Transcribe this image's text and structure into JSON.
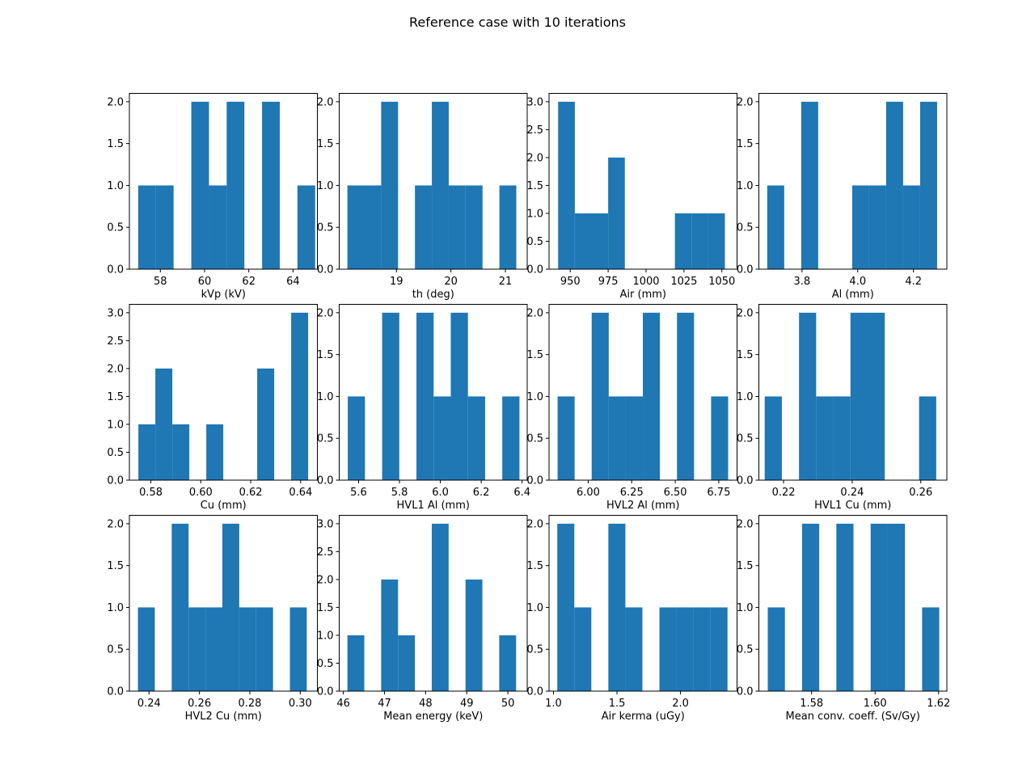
{
  "figure": {
    "suptitle": "Reference case with 10 iterations"
  },
  "colors": {
    "bar": "#1f77b4",
    "axes": "#000000",
    "background": "#ffffff"
  },
  "chart_data": [
    {
      "type": "bar",
      "xlabel": "kVp (kV)",
      "xlim": [
        56.6,
        65.1
      ],
      "ylim": [
        0,
        2.1
      ],
      "xticks": [
        58,
        60,
        62,
        64
      ],
      "xtick_labels": [
        "58",
        "60",
        "62",
        "64"
      ],
      "yticks": [
        0,
        0.5,
        1,
        1.5,
        2
      ],
      "ytick_labels": [
        "0.0",
        "0.5",
        "1.0",
        "1.5",
        "2.0"
      ],
      "bin_edges": [
        57.0,
        57.8,
        58.6,
        59.4,
        60.2,
        61.0,
        61.8,
        62.6,
        63.4,
        64.2,
        65.0
      ],
      "counts": [
        1,
        1,
        0,
        2,
        1,
        2,
        0,
        2,
        0,
        1
      ]
    },
    {
      "type": "bar",
      "xlabel": "th (deg)",
      "xlim": [
        17.95,
        21.4
      ],
      "ylim": [
        0,
        2.1
      ],
      "xticks": [
        19,
        20,
        21
      ],
      "xtick_labels": [
        "19",
        "20",
        "21"
      ],
      "yticks": [
        0,
        0.5,
        1,
        1.5,
        2
      ],
      "ytick_labels": [
        "0.0",
        "0.5",
        "1.0",
        "1.5",
        "2.0"
      ],
      "bin_edges": [
        18.1,
        18.41,
        18.72,
        19.03,
        19.34,
        19.65,
        19.96,
        20.27,
        20.58,
        20.89,
        21.2
      ],
      "counts": [
        1,
        1,
        2,
        0,
        1,
        2,
        1,
        1,
        0,
        1
      ]
    },
    {
      "type": "bar",
      "xlabel": "Air (mm)",
      "xlim": [
        936,
        1060
      ],
      "ylim": [
        0,
        3.15
      ],
      "xticks": [
        950,
        975,
        1000,
        1025,
        1050
      ],
      "xtick_labels": [
        "950",
        "975",
        "1000",
        "1025",
        "1050"
      ],
      "yticks": [
        0,
        0.5,
        1,
        1.5,
        2,
        2.5,
        3
      ],
      "ytick_labels": [
        "0.0",
        "0.5",
        "1.0",
        "1.5",
        "2.0",
        "2.5",
        "3.0"
      ],
      "bin_edges": [
        942,
        953,
        964,
        975,
        986,
        997,
        1008,
        1019,
        1030,
        1041,
        1052
      ],
      "counts": [
        3,
        1,
        1,
        2,
        0,
        0,
        0,
        1,
        1,
        1
      ]
    },
    {
      "type": "bar",
      "xlabel": "Al (mm)",
      "xlim": [
        3.645,
        4.32
      ],
      "ylim": [
        0,
        2.1
      ],
      "xticks": [
        3.8,
        4.0,
        4.2
      ],
      "xtick_labels": [
        "3.8",
        "4.0",
        "4.2"
      ],
      "yticks": [
        0,
        0.5,
        1,
        1.5,
        2
      ],
      "ytick_labels": [
        "0.0",
        "0.5",
        "1.0",
        "1.5",
        "2.0"
      ],
      "bin_edges": [
        3.675,
        3.736,
        3.797,
        3.858,
        3.919,
        3.98,
        4.041,
        4.102,
        4.163,
        4.224,
        4.285
      ],
      "counts": [
        1,
        0,
        2,
        0,
        0,
        1,
        1,
        2,
        1,
        2
      ]
    },
    {
      "type": "bar",
      "xlabel": "Cu (mm)",
      "xlim": [
        0.5714,
        0.6467
      ],
      "ylim": [
        0,
        3.15
      ],
      "xticks": [
        0.58,
        0.6,
        0.62,
        0.64
      ],
      "xtick_labels": [
        "0.58",
        "0.60",
        "0.62",
        "0.64"
      ],
      "yticks": [
        0,
        0.5,
        1,
        1.5,
        2,
        2.5,
        3
      ],
      "ytick_labels": [
        "0.0",
        "0.5",
        "1.0",
        "1.5",
        "2.0",
        "2.5",
        "3.0"
      ],
      "bin_edges": [
        0.575,
        0.5818,
        0.5886,
        0.5954,
        0.6022,
        0.609,
        0.6158,
        0.6226,
        0.6294,
        0.6362,
        0.643
      ],
      "counts": [
        1,
        2,
        1,
        0,
        1,
        0,
        0,
        2,
        0,
        3
      ]
    },
    {
      "type": "bar",
      "xlabel": "HVL1 Al (mm)",
      "xlim": [
        5.505,
        6.425
      ],
      "ylim": [
        0,
        2.1
      ],
      "xticks": [
        5.6,
        5.8,
        6.0,
        6.2,
        6.4
      ],
      "xtick_labels": [
        "5.6",
        "5.8",
        "6.0",
        "6.2",
        "6.4"
      ],
      "yticks": [
        0,
        0.5,
        1,
        1.5,
        2
      ],
      "ytick_labels": [
        "0.0",
        "0.5",
        "1.0",
        "1.5",
        "2.0"
      ],
      "bin_edges": [
        5.547,
        5.631,
        5.715,
        5.799,
        5.883,
        5.967,
        6.051,
        6.135,
        6.219,
        6.303,
        6.387
      ],
      "counts": [
        1,
        0,
        2,
        0,
        2,
        1,
        2,
        1,
        0,
        1
      ]
    },
    {
      "type": "bar",
      "xlabel": "HVL2 Al (mm)",
      "xlim": [
        5.775,
        6.855
      ],
      "ylim": [
        0,
        2.1
      ],
      "xticks": [
        6.0,
        6.25,
        6.5,
        6.75
      ],
      "xtick_labels": [
        "6.00",
        "6.25",
        "6.50",
        "6.75"
      ],
      "yticks": [
        0,
        0.5,
        1,
        1.5,
        2
      ],
      "ytick_labels": [
        "0.0",
        "0.5",
        "1.0",
        "1.5",
        "2.0"
      ],
      "bin_edges": [
        5.824,
        5.922,
        6.02,
        6.118,
        6.216,
        6.314,
        6.412,
        6.51,
        6.608,
        6.706,
        6.804
      ],
      "counts": [
        1,
        0,
        2,
        1,
        1,
        2,
        0,
        2,
        0,
        1
      ]
    },
    {
      "type": "bar",
      "xlabel": "HVL1 Cu (mm)",
      "xlim": [
        0.2128,
        0.2676
      ],
      "ylim": [
        0,
        2.1
      ],
      "xticks": [
        0.22,
        0.24,
        0.26
      ],
      "xtick_labels": [
        "0.22",
        "0.24",
        "0.26"
      ],
      "yticks": [
        0,
        0.5,
        1,
        1.5,
        2
      ],
      "ytick_labels": [
        "0.0",
        "0.5",
        "1.0",
        "1.5",
        "2.0"
      ],
      "bin_edges": [
        0.2145,
        0.2195,
        0.2245,
        0.2295,
        0.2345,
        0.2395,
        0.2445,
        0.2495,
        0.2545,
        0.2595,
        0.2645
      ],
      "counts": [
        1,
        0,
        2,
        1,
        1,
        2,
        2,
        0,
        0,
        1
      ]
    },
    {
      "type": "bar",
      "xlabel": "HVL2 Cu (mm)",
      "xlim": [
        0.2322,
        0.3068
      ],
      "ylim": [
        0,
        2.1
      ],
      "xticks": [
        0.24,
        0.26,
        0.28,
        0.3
      ],
      "xtick_labels": [
        "0.24",
        "0.26",
        "0.28",
        "0.30"
      ],
      "yticks": [
        0,
        0.5,
        1,
        1.5,
        2
      ],
      "ytick_labels": [
        "0.0",
        "0.5",
        "1.0",
        "1.5",
        "2.0"
      ],
      "bin_edges": [
        0.2356,
        0.2423,
        0.249,
        0.2557,
        0.2624,
        0.2691,
        0.2758,
        0.2825,
        0.2892,
        0.2959,
        0.3026
      ],
      "counts": [
        1,
        0,
        2,
        1,
        1,
        2,
        1,
        1,
        0,
        1
      ]
    },
    {
      "type": "bar",
      "xlabel": "Mean energy (keV)",
      "xlim": [
        45.9,
        50.47
      ],
      "ylim": [
        0,
        3.15
      ],
      "xticks": [
        46,
        47,
        48,
        49,
        50
      ],
      "xtick_labels": [
        "46",
        "47",
        "48",
        "49",
        "50"
      ],
      "yticks": [
        0,
        0.5,
        1,
        1.5,
        2,
        2.5,
        3
      ],
      "ytick_labels": [
        "0.0",
        "0.5",
        "1.0",
        "1.5",
        "2.0",
        "2.5",
        "3.0"
      ],
      "bin_edges": [
        46.1,
        46.51,
        46.92,
        47.33,
        47.74,
        48.15,
        48.56,
        48.97,
        49.38,
        49.79,
        50.2
      ],
      "counts": [
        1,
        0,
        2,
        1,
        0,
        3,
        0,
        2,
        0,
        1
      ]
    },
    {
      "type": "bar",
      "xlabel": "Air kerma (uGy)",
      "xlim": [
        0.965,
        2.445
      ],
      "ylim": [
        0,
        2.1
      ],
      "xticks": [
        1.0,
        1.5,
        2.0
      ],
      "xtick_labels": [
        "1.0",
        "1.5",
        "2.0"
      ],
      "yticks": [
        0,
        0.5,
        1,
        1.5,
        2
      ],
      "ytick_labels": [
        "0.0",
        "0.5",
        "1.0",
        "1.5",
        "2.0"
      ],
      "bin_edges": [
        1.03,
        1.164,
        1.298,
        1.432,
        1.566,
        1.7,
        1.834,
        1.968,
        2.102,
        2.236,
        2.37
      ],
      "counts": [
        2,
        1,
        0,
        2,
        1,
        0,
        1,
        1,
        1,
        1
      ]
    },
    {
      "type": "bar",
      "xlabel": "Mean conv. coeff. (Sv/Gy)",
      "xlim": [
        1.5634,
        1.6226
      ],
      "ylim": [
        0,
        2.1
      ],
      "xticks": [
        1.58,
        1.6,
        1.62
      ],
      "xtick_labels": [
        "1.58",
        "1.60",
        "1.62"
      ],
      "yticks": [
        0,
        0.5,
        1,
        1.5,
        2
      ],
      "ytick_labels": [
        "0.0",
        "0.5",
        "1.0",
        "1.5",
        "2.0"
      ],
      "bin_edges": [
        1.5662,
        1.5716,
        1.577,
        1.5824,
        1.5878,
        1.5932,
        1.5986,
        1.604,
        1.6094,
        1.6148,
        1.6202
      ],
      "counts": [
        1,
        0,
        2,
        0,
        2,
        0,
        2,
        2,
        0,
        1
      ]
    }
  ]
}
